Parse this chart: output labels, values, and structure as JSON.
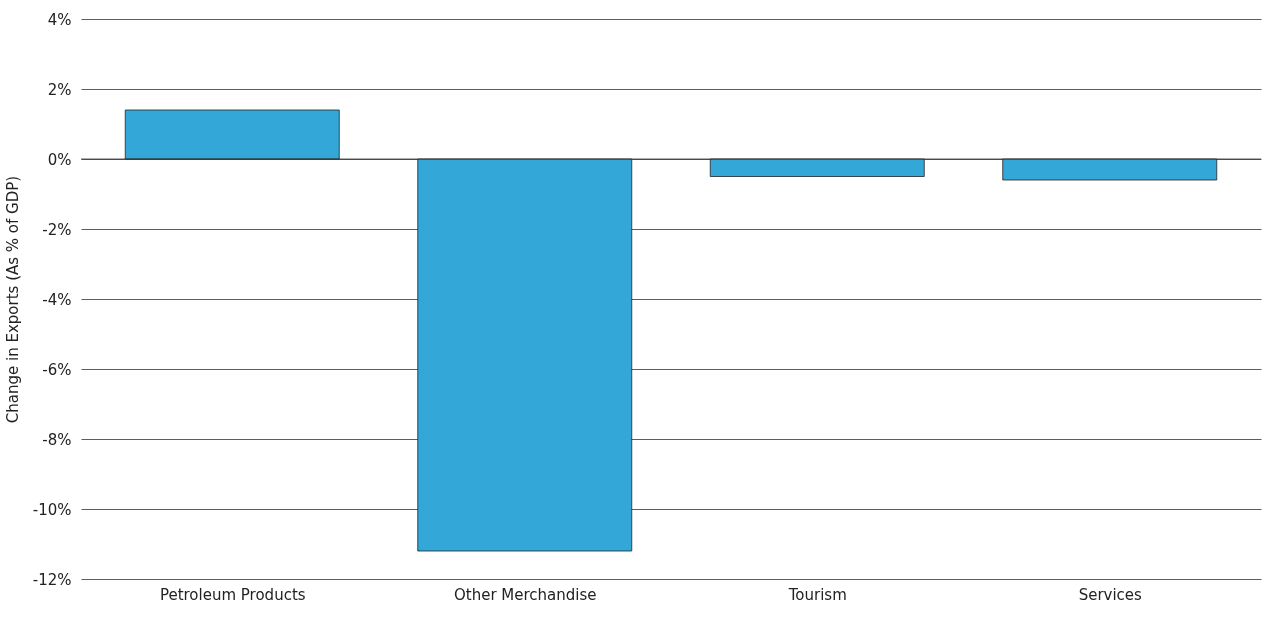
{
  "chart_data": {
    "type": "bar",
    "ylabel": "Change in Exports (As % of GDP)",
    "categories": [
      "Petroleum Products",
      "Other Merchandise",
      "Tourism",
      "Services"
    ],
    "values": [
      1.4,
      -11.2,
      -0.5,
      -0.6
    ],
    "color": "#33a8d8",
    "ylim": [
      -12,
      4
    ],
    "yticks": [
      {
        "value": -12,
        "label": "-12%"
      },
      {
        "value": -10,
        "label": "-10%"
      },
      {
        "value": -8,
        "label": "-8%"
      },
      {
        "value": -6,
        "label": "-6%"
      },
      {
        "value": -4,
        "label": "-4%"
      },
      {
        "value": -2,
        "label": "-2%"
      },
      {
        "value": 0,
        "label": "0%"
      },
      {
        "value": 2,
        "label": "2%"
      },
      {
        "value": 4,
        "label": "4%"
      }
    ],
    "grid": "y"
  }
}
